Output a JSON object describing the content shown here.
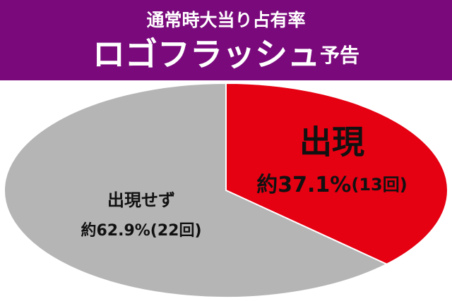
{
  "chart_data": {
    "type": "pie",
    "title": "通常時大当り占有率",
    "subtitle": [
      "ロゴフラッシュ",
      "予告"
    ],
    "categories": [
      "出現",
      "出現せず"
    ],
    "values": [
      37.1,
      62.9
    ],
    "value_labels": [
      "約37.1%",
      "約62.9%"
    ],
    "counts": [
      13,
      22
    ],
    "count_labels": [
      "(13回)",
      "(22回)"
    ],
    "colors": [
      "#e50012",
      "#b5b5b5"
    ],
    "header_color": "#7a0a7c"
  }
}
